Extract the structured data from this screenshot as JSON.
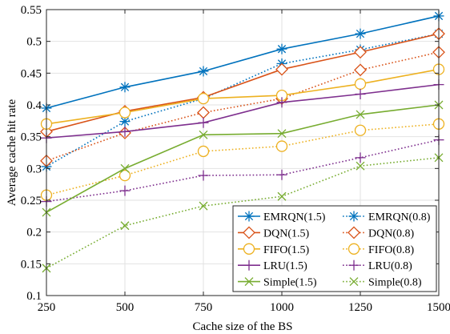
{
  "chart_data": {
    "type": "line",
    "title": "",
    "xlabel": "Cache size of the BS",
    "ylabel": "Average cache hit rate",
    "x": [
      250,
      500,
      750,
      1000,
      1250,
      1500
    ],
    "x_ticks": [
      "250",
      "500",
      "750",
      "1000",
      "1250",
      "1500"
    ],
    "xlim": [
      250,
      1500
    ],
    "ylim": [
      0.1,
      0.55
    ],
    "y_ticks": [
      0.1,
      0.15,
      0.2,
      0.25,
      0.3,
      0.35,
      0.4,
      0.45,
      0.5,
      0.55
    ],
    "y_tick_labels": [
      "0.1",
      "0.15",
      "0.2",
      "0.25",
      "0.3",
      "0.35",
      "0.4",
      "0.45",
      "0.5",
      "0.55"
    ],
    "grid": true,
    "legend_position": "bottom-right",
    "legend_columns": 2,
    "series": [
      {
        "name": "EMRQN(1.5)",
        "color": "#0072BD",
        "marker": "asterisk",
        "line": "solid",
        "values": [
          0.395,
          0.428,
          0.453,
          0.488,
          0.512,
          0.54
        ]
      },
      {
        "name": "EMRQN(0.8)",
        "color": "#0072BD",
        "marker": "asterisk",
        "line": "dotted",
        "values": [
          0.303,
          0.374,
          0.41,
          0.465,
          0.487,
          0.512
        ]
      },
      {
        "name": "DQN(1.5)",
        "color": "#D95319",
        "marker": "diamond",
        "line": "solid",
        "values": [
          0.358,
          0.39,
          0.412,
          0.456,
          0.483,
          0.512
        ]
      },
      {
        "name": "DQN(0.8)",
        "color": "#D95319",
        "marker": "diamond",
        "line": "dotted",
        "values": [
          0.312,
          0.356,
          0.388,
          0.41,
          0.455,
          0.483
        ]
      },
      {
        "name": "FIFO(1.5)",
        "color": "#EDB120",
        "marker": "circle",
        "line": "solid",
        "values": [
          0.37,
          0.388,
          0.41,
          0.415,
          0.433,
          0.456
        ]
      },
      {
        "name": "FIFO(0.8)",
        "color": "#EDB120",
        "marker": "circle",
        "line": "dotted",
        "values": [
          0.258,
          0.289,
          0.327,
          0.335,
          0.36,
          0.37
        ]
      },
      {
        "name": "LRU(1.5)",
        "color": "#7E2F8E",
        "marker": "plus",
        "line": "solid",
        "values": [
          0.348,
          0.358,
          0.372,
          0.404,
          0.417,
          0.432
        ]
      },
      {
        "name": "LRU(0.8)",
        "color": "#7E2F8E",
        "marker": "plus",
        "line": "dotted",
        "values": [
          0.248,
          0.265,
          0.289,
          0.29,
          0.317,
          0.345
        ]
      },
      {
        "name": "Simple(1.5)",
        "color": "#77AC30",
        "marker": "x",
        "line": "solid",
        "values": [
          0.231,
          0.3,
          0.353,
          0.355,
          0.385,
          0.4
        ]
      },
      {
        "name": "Simple(0.8)",
        "color": "#77AC30",
        "marker": "x",
        "line": "dotted",
        "values": [
          0.143,
          0.21,
          0.241,
          0.256,
          0.304,
          0.317
        ]
      }
    ]
  }
}
